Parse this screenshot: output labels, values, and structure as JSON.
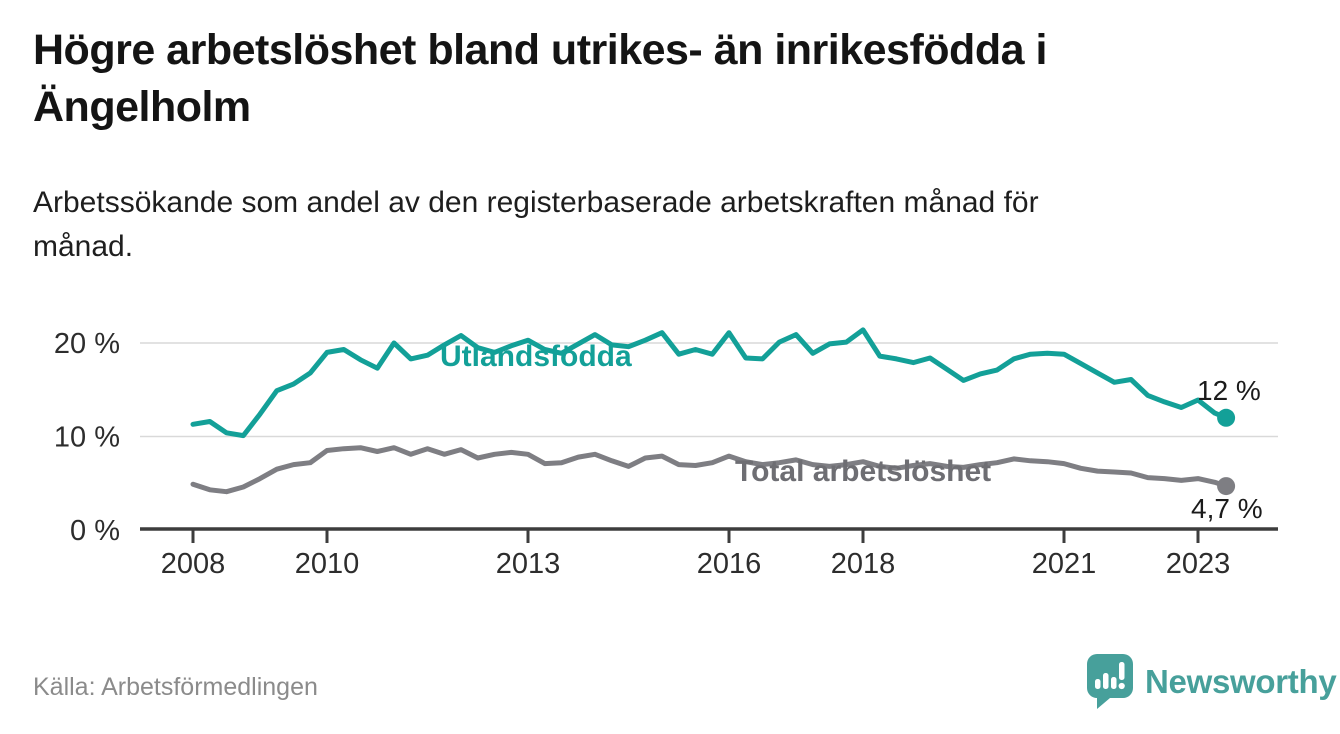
{
  "header": {
    "title": "Högre arbetslöshet bland utrikes- än inrikesfödda i\nÄngelholm",
    "subtitle": "Arbetssökande som andel av den registerbaserade arbetskraften månad för\nmånad."
  },
  "chart_data": {
    "type": "line",
    "title": "Högre arbetslöshet bland utrikes- än inrikesfödda i Ängelholm",
    "xlabel": "",
    "ylabel": "Arbetssökande som andel av den registerbaserade arbetskraften",
    "unit": "%",
    "grid": "horizontal",
    "legend_position": "inline-on-line",
    "xlim": [
      2007.2,
      2024.2
    ],
    "ylim": [
      0,
      23
    ],
    "xticks": {
      "values": [
        2008,
        2010,
        2013,
        2016,
        2018,
        2021,
        2023
      ],
      "labels": [
        "2008",
        "2010",
        "2013",
        "2016",
        "2018",
        "2021",
        "2023"
      ]
    },
    "yticks": {
      "values": [
        0,
        10,
        20
      ],
      "labels": [
        "0 %",
        "10 %",
        "20 %"
      ]
    },
    "x": [
      2008,
      2008.25,
      2008.5,
      2008.75,
      2009,
      2009.25,
      2009.5,
      2009.75,
      2010,
      2010.25,
      2010.5,
      2010.75,
      2011,
      2011.25,
      2011.5,
      2011.75,
      2012,
      2012.25,
      2012.5,
      2012.75,
      2013,
      2013.25,
      2013.5,
      2013.75,
      2014,
      2014.25,
      2014.5,
      2014.75,
      2015,
      2015.25,
      2015.5,
      2015.75,
      2016,
      2016.25,
      2016.5,
      2016.75,
      2017,
      2017.25,
      2017.5,
      2017.75,
      2018,
      2018.25,
      2018.5,
      2018.75,
      2019,
      2019.25,
      2019.5,
      2019.75,
      2020,
      2020.25,
      2020.5,
      2020.75,
      2021,
      2021.25,
      2021.5,
      2021.75,
      2022,
      2022.25,
      2022.5,
      2022.75,
      2023,
      2023.25,
      2023.42
    ],
    "series": [
      {
        "name": "Utlandsfödda",
        "color": "#13a098",
        "end_label": "12 %",
        "end_value": 12.0,
        "values": [
          11.3,
          11.6,
          10.4,
          10.1,
          12.4,
          14.9,
          15.6,
          16.8,
          19.0,
          19.3,
          18.2,
          17.3,
          20.0,
          18.3,
          18.7,
          19.8,
          20.8,
          19.5,
          19.0,
          19.7,
          20.3,
          19.3,
          18.9,
          19.9,
          20.9,
          19.8,
          19.6,
          20.3,
          21.1,
          18.8,
          19.3,
          18.8,
          21.1,
          18.4,
          18.3,
          20.1,
          20.9,
          18.9,
          19.9,
          20.1,
          21.4,
          18.6,
          18.3,
          17.9,
          18.4,
          17.2,
          16.0,
          16.7,
          17.1,
          18.3,
          18.8,
          18.9,
          18.8,
          17.8,
          16.8,
          15.8,
          16.1,
          14.4,
          13.7,
          13.1,
          13.9,
          12.5,
          12.0
        ]
      },
      {
        "name": "Total arbetslöshet",
        "color": "#7e7e83",
        "end_label": "4,7 %",
        "end_value": 4.7,
        "values": [
          4.9,
          4.3,
          4.1,
          4.6,
          5.5,
          6.5,
          7.0,
          7.2,
          8.5,
          8.7,
          8.8,
          8.4,
          8.8,
          8.1,
          8.7,
          8.1,
          8.6,
          7.7,
          8.1,
          8.3,
          8.1,
          7.1,
          7.2,
          7.8,
          8.1,
          7.4,
          6.8,
          7.7,
          7.9,
          7.0,
          6.9,
          7.2,
          7.9,
          7.3,
          7.0,
          7.2,
          7.5,
          7.0,
          6.8,
          7.0,
          7.3,
          6.8,
          6.6,
          6.9,
          7.1,
          6.8,
          6.7,
          7.0,
          7.2,
          7.6,
          7.4,
          7.3,
          7.1,
          6.6,
          6.3,
          6.2,
          6.1,
          5.6,
          5.5,
          5.3,
          5.5,
          5.1,
          4.7
        ]
      }
    ]
  },
  "labels": {
    "series_label_color_total": "#6e6e73"
  },
  "footer": {
    "source": "Källa: Arbetsförmedlingen",
    "brand": "Newsworthy",
    "brand_color": "#47a09b"
  },
  "colors": {
    "background": "#ffffff",
    "title": "#141414",
    "gridline": "#d9d9d9",
    "axis": "#3d3d3d",
    "tick_label": "#2d2d2d",
    "end_label": "#1b1b1b"
  }
}
